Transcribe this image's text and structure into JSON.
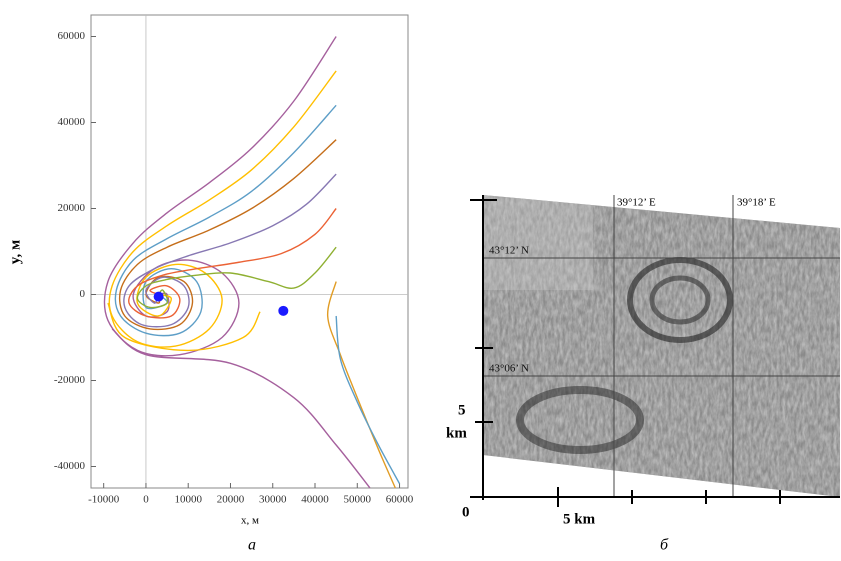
{
  "chart_data": {
    "type": "line",
    "xlabel": "x, м",
    "ylabel": "y, м",
    "xlim": [
      -13000,
      62000
    ],
    "ylim": [
      -45000,
      65000
    ],
    "xticks": [
      -10000,
      0,
      10000,
      20000,
      30000,
      40000,
      50000,
      60000
    ],
    "yticks": [
      -40000,
      -20000,
      0,
      20000,
      40000,
      60000
    ],
    "series": [
      {
        "color": "#a5609d",
        "x": [
          45000,
          35000,
          25000,
          15000,
          5000,
          -3000,
          -9000,
          -9000,
          -2000,
          8000,
          18000,
          22000,
          18000,
          10000,
          2000,
          -3000,
          0,
          5000,
          5000,
          3000
        ],
        "values": [
          60000,
          45000,
          34000,
          26000,
          19000,
          12000,
          3000,
          -6000,
          -13000,
          -14000,
          -10000,
          -2000,
          5000,
          8000,
          6000,
          0,
          -5000,
          -4000,
          0,
          0
        ]
      },
      {
        "color": "#ffbf00",
        "x": [
          45000,
          35000,
          25000,
          15000,
          5000,
          -3000,
          -8000,
          -8000,
          -2000,
          7000,
          15000,
          18000,
          14000,
          7000,
          0,
          -2000,
          3000,
          6000,
          3000
        ],
        "values": [
          52000,
          39000,
          29000,
          22000,
          16000,
          10000,
          2000,
          -5000,
          -11000,
          -12000,
          -8000,
          -1000,
          5000,
          7000,
          4000,
          -2000,
          -5000,
          -1000,
          0
        ]
      },
      {
        "color": "#5d9ec7",
        "x": [
          45000,
          35000,
          25000,
          15000,
          5000,
          -3000,
          -7000,
          -6000,
          0,
          8000,
          13000,
          12000,
          6000,
          0,
          0,
          5000,
          3000
        ],
        "values": [
          44000,
          33000,
          24000,
          18000,
          13000,
          8000,
          1000,
          -5000,
          -9000,
          -9000,
          -4000,
          3000,
          6000,
          3000,
          -3000,
          -2000,
          0
        ]
      },
      {
        "color": "#c56e1a",
        "x": [
          45000,
          35000,
          25000,
          15000,
          5000,
          -2000,
          -6000,
          -5000,
          1000,
          8000,
          11000,
          9000,
          3000,
          0,
          3000,
          3000
        ],
        "values": [
          36000,
          27000,
          20000,
          15000,
          11000,
          7000,
          1000,
          -5000,
          -8000,
          -7000,
          -2000,
          3000,
          4000,
          0,
          -2000,
          0
        ]
      },
      {
        "color": "#8778b3",
        "x": [
          45000,
          38000,
          30000,
          20000,
          10000,
          2000,
          -4000,
          -5000,
          -1000,
          6000,
          10000,
          9000,
          4000,
          0,
          2000,
          3000
        ],
        "values": [
          28000,
          21000,
          16000,
          12000,
          9000,
          6000,
          2000,
          -3000,
          -7000,
          -7000,
          -3000,
          2000,
          4000,
          1000,
          -2000,
          0
        ]
      },
      {
        "color": "#eb6235",
        "x": [
          45000,
          40000,
          32000,
          22000,
          12000,
          4000,
          -2000,
          -4000,
          0,
          6000,
          8000,
          5000,
          1000,
          3000
        ],
        "values": [
          20000,
          14000,
          9500,
          7500,
          6000,
          4500,
          2000,
          -2000,
          -5000,
          -5000,
          -1000,
          2000,
          1000,
          0
        ]
      },
      {
        "color": "#8fb032",
        "x": [
          45000,
          40000,
          35000,
          29000,
          20000,
          12000,
          5000,
          0,
          -2000,
          1000,
          5000,
          4000,
          3000
        ],
        "values": [
          11000,
          5000,
          1500,
          3000,
          5000,
          4500,
          3500,
          2000,
          -1000,
          -3000,
          -2000,
          1000,
          0
        ]
      },
      {
        "color": "#ffbf00",
        "x": [
          -9000,
          -5000,
          10000,
          23000,
          27000
        ],
        "values": [
          -2000,
          -10000,
          -13000,
          -10000,
          -4000
        ]
      },
      {
        "color": "#e19c24",
        "x": [
          45000,
          43000,
          46000,
          50000,
          55000,
          59000
        ],
        "values": [
          3000,
          -5000,
          -14000,
          -24000,
          -36000,
          -45000
        ]
      },
      {
        "color": "#5d9ec7",
        "x": [
          45000,
          46000,
          50000,
          55000,
          60000
        ],
        "values": [
          -5000,
          -15000,
          -25000,
          -35000,
          -44000
        ]
      },
      {
        "color": "#a5609d",
        "x": [
          -8000,
          0,
          20000,
          35000,
          45000,
          53000
        ],
        "values": [
          -8000,
          -14000,
          -16000,
          -24000,
          -35000,
          -45000
        ]
      }
    ],
    "points": {
      "color": "#1a1aff",
      "x": [
        3000,
        32500
      ],
      "values": [
        -500,
        -3800
      ]
    }
  },
  "image": {
    "meridians": [
      "39°12’ E",
      "39°18’ E"
    ],
    "parallels": [
      "43°12’ N",
      "43°06’ N"
    ],
    "origin": "0",
    "x_scale": "5 km",
    "y_scale": [
      "5",
      "km"
    ]
  },
  "panel_labels": [
    "а",
    "б"
  ]
}
